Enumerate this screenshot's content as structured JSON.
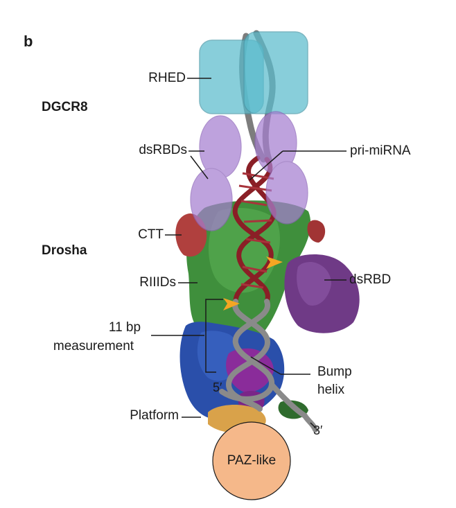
{
  "panel_letter": "b",
  "groups": {
    "dgcr8": "DGCR8",
    "drosha": "Drosha"
  },
  "labels": {
    "rhed": "RHED",
    "dsrbds": "dsRBDs",
    "pri_mirna": "pri-miRNA",
    "ctt": "CTT",
    "dsrbd": "dsRBD",
    "riiids": "RIIIDs",
    "measure_line1": "11 bp",
    "measure_line2": "measurement",
    "bump_line1": "Bump",
    "bump_line2": "helix",
    "platform": "Platform",
    "paz_like": "PAZ-like",
    "five_prime": "5′",
    "three_prime": "3′"
  },
  "colors": {
    "rhed": "#5bbccd",
    "dsrbd_ellipse": "#a67fd0",
    "rna": "#8a1f26",
    "rna_grey": "#8a8a8a",
    "drosha_green": "#3f8f3c",
    "ctt_red": "#b0403e",
    "dsrbd_purple": "#6f3a86",
    "platform_blue": "#2a4faa",
    "bump_magenta": "#8a2c9a",
    "paz_orange": "#f5b88a",
    "cleavage_marker": "#f5a623"
  }
}
